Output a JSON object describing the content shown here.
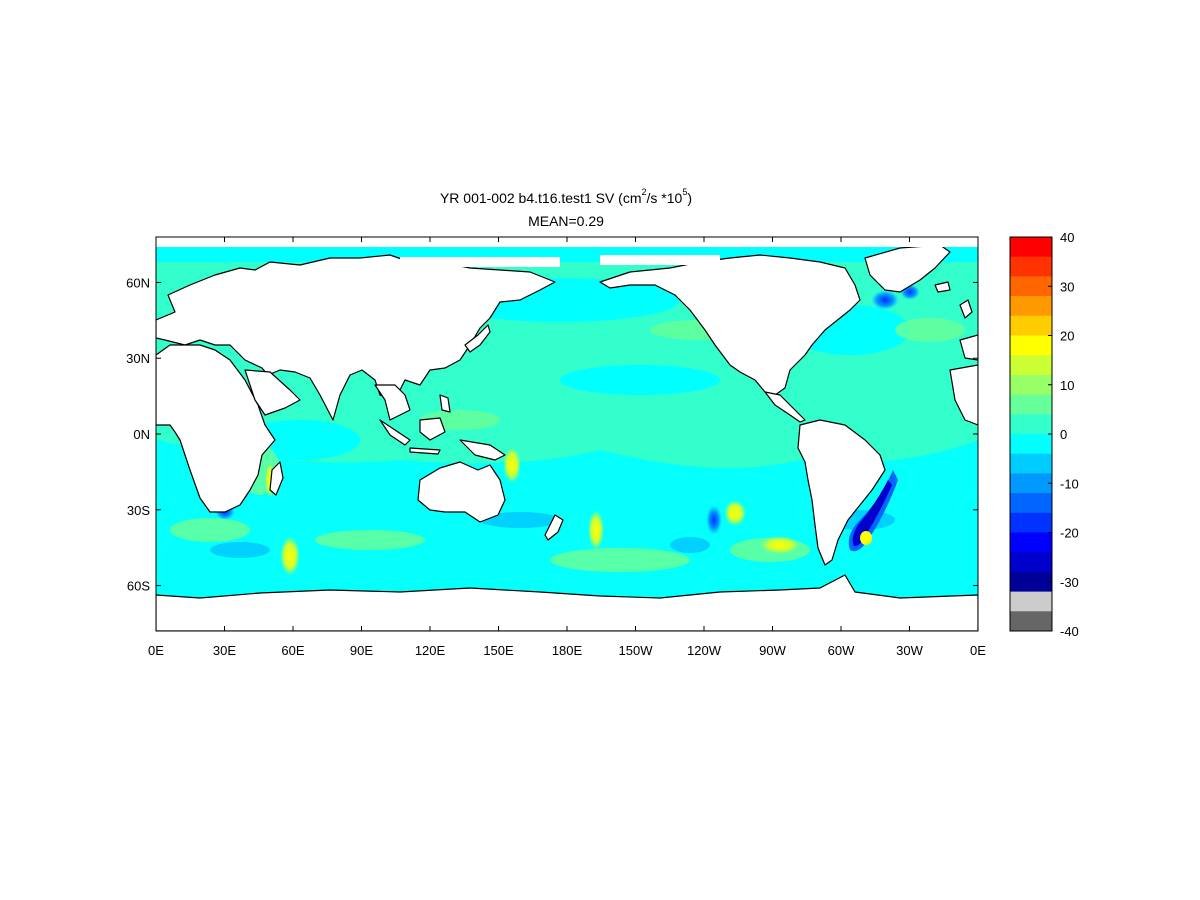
{
  "title": {
    "prefix": "YR 001-002 b4.t16.test1  SV (cm",
    "sup1": "2",
    "middle": "/s *10",
    "sup2": "5",
    "suffix": ")",
    "mean": "MEAN=0.29"
  },
  "lat_ticks": [
    "60N",
    "30N",
    "0N",
    "30S",
    "60S"
  ],
  "lon_ticks": [
    "0E",
    "30E",
    "60E",
    "90E",
    "120E",
    "150E",
    "180E",
    "150W",
    "120W",
    "90W",
    "60W",
    "30W",
    "0E"
  ],
  "colorbar": {
    "labels": [
      "40",
      "30",
      "20",
      "10",
      "0",
      "-10",
      "-20",
      "-30",
      "-40"
    ],
    "colors": [
      "#ff0000",
      "#ff3300",
      "#ff6600",
      "#ff9900",
      "#ffcc00",
      "#ffff00",
      "#ccff33",
      "#99ff66",
      "#66ff99",
      "#33ffcc",
      "#00ffff",
      "#00ccff",
      "#0099ff",
      "#0066ff",
      "#0033ff",
      "#0000ff",
      "#0000cc",
      "#000099",
      "#cccccc",
      "#666666"
    ]
  },
  "map": {
    "ocean_color": "#33ffcc",
    "land_color": "#ffffff",
    "coast_color": "#000000",
    "mean_value": 0.29
  }
}
